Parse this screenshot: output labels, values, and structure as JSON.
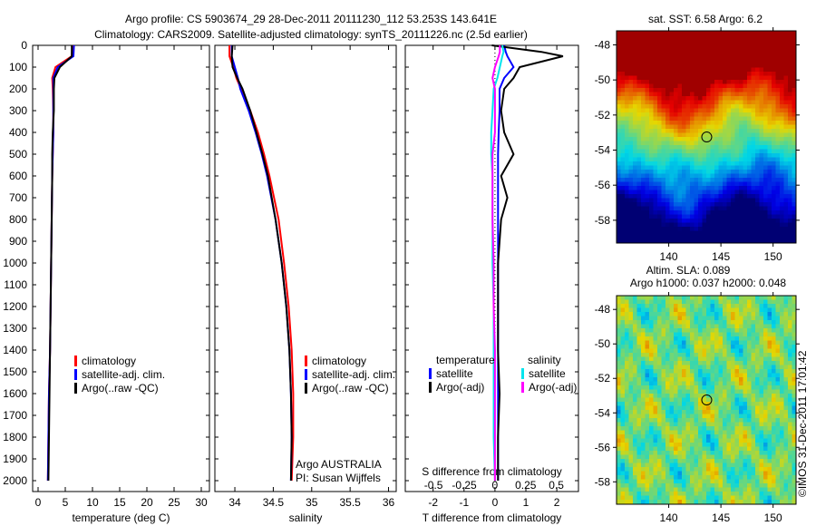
{
  "title_line1": "Argo profile: CS 5903674_29 28-Dec-2011 20111230_112 53.253S 143.641E",
  "title_line2": "Climatology: CARS2009. Satellite-adjusted climatology: synTS_20111226.nc (2.5d earlier)",
  "credit": "©IMOS 31-Dec-2011 17:01:42",
  "colors": {
    "climatology": "#ff0000",
    "satellite": "#0000ff",
    "argo": "#000000",
    "sal_satellite": "#00e5ee",
    "sal_argo": "#ff00ff"
  },
  "chart_data": [
    {
      "type": "line",
      "name": "temperature",
      "xlabel": "temperature (deg C)",
      "ylabel": "depth",
      "xlim": [
        -1,
        31.5
      ],
      "ylim": [
        2050,
        0
      ],
      "xticks": [
        0,
        5,
        10,
        15,
        20,
        25,
        30
      ],
      "yticks": [
        0,
        100,
        200,
        300,
        400,
        500,
        600,
        700,
        800,
        900,
        1000,
        1100,
        1200,
        1300,
        1400,
        1500,
        1600,
        1700,
        1800,
        1900,
        2000
      ],
      "depth": [
        0,
        50,
        100,
        150,
        200,
        300,
        400,
        500,
        600,
        800,
        1000,
        1200,
        1400,
        1600,
        1800,
        2000
      ],
      "series": [
        {
          "name": "climatology",
          "color": "#ff0000",
          "values": [
            6.3,
            6.2,
            3.2,
            2.6,
            2.7,
            2.8,
            2.8,
            2.7,
            2.6,
            2.5,
            2.4,
            2.3,
            2.2,
            2.0,
            1.9,
            1.8
          ]
        },
        {
          "name": "satellite-adj. clim.",
          "color": "#0000ff",
          "values": [
            6.6,
            6.5,
            3.6,
            2.8,
            2.8,
            2.8,
            2.8,
            2.7,
            2.6,
            2.5,
            2.4,
            2.3,
            2.2,
            2.0,
            1.9,
            1.8
          ]
        },
        {
          "name": "Argo(..raw -QC)",
          "color": "#000000",
          "values": [
            6.2,
            6.2,
            4.0,
            3.0,
            2.9,
            2.9,
            2.7,
            2.6,
            2.6,
            2.5,
            2.4,
            2.3,
            2.2,
            2.1,
            2.0,
            1.9
          ]
        }
      ]
    },
    {
      "type": "line",
      "name": "salinity",
      "xlabel": "salinity",
      "xlim": [
        33.74,
        36.1
      ],
      "ylim": [
        2050,
        0
      ],
      "xticks": [
        34,
        34.5,
        35,
        35.5,
        36
      ],
      "depth": [
        0,
        50,
        100,
        150,
        200,
        300,
        400,
        500,
        600,
        800,
        1000,
        1200,
        1400,
        1600,
        1800,
        2000
      ],
      "series": [
        {
          "name": "climatology",
          "color": "#ff0000",
          "values": [
            33.93,
            33.93,
            33.98,
            34.02,
            34.08,
            34.2,
            34.3,
            34.38,
            34.45,
            34.57,
            34.64,
            34.7,
            34.74,
            34.76,
            34.76,
            34.74
          ]
        },
        {
          "name": "satellite-adj. clim.",
          "color": "#0000ff",
          "values": [
            33.96,
            33.96,
            34.0,
            34.04,
            34.07,
            34.18,
            34.27,
            34.35,
            34.42,
            34.53,
            34.61,
            34.67,
            34.71,
            34.73,
            34.74,
            34.73
          ]
        },
        {
          "name": "Argo(..raw -QC)",
          "color": "#000000",
          "values": [
            33.97,
            33.96,
            33.97,
            34.03,
            34.1,
            34.2,
            34.28,
            34.36,
            34.43,
            34.53,
            34.61,
            34.67,
            34.71,
            34.73,
            34.74,
            34.73
          ]
        }
      ],
      "annotation": [
        "Argo AUSTRALIA",
        "PI: Susan Wijffels"
      ]
    },
    {
      "type": "line",
      "name": "difference",
      "xlabel": "T difference from climatology",
      "x2label": "S difference from climatology",
      "xlim": [
        -2.9,
        2.7
      ],
      "x2lim": [
        -0.73,
        0.68
      ],
      "ylim": [
        2050,
        0
      ],
      "xticks": [
        -2,
        -1,
        0,
        1,
        2
      ],
      "x2ticks": [
        -0.5,
        -0.25,
        0,
        0.25,
        0.5
      ],
      "x2ticklabels": [
        "-0.5",
        "-0.25",
        "0",
        "0.25",
        "0.5"
      ],
      "depth": [
        0,
        30,
        50,
        100,
        150,
        200,
        300,
        400,
        500,
        600,
        700,
        800,
        1000,
        1200,
        1400,
        1600,
        1800,
        2000
      ],
      "series": [
        {
          "name": "temperature satellite",
          "axis": "T",
          "color": "#0000ff",
          "values": [
            0.3,
            0.35,
            0.4,
            0.6,
            0.3,
            0.15,
            0.15,
            0.12,
            0.1,
            0.1,
            0.1,
            0.1,
            0.1,
            0.1,
            0.1,
            0.1,
            0.1,
            0.1
          ]
        },
        {
          "name": "temperature Argo(-adj)",
          "axis": "T",
          "color": "#000000",
          "values": [
            -0.1,
            1.5,
            2.2,
            0.8,
            0.6,
            0.3,
            0.2,
            0.3,
            0.6,
            0.2,
            0.4,
            0.2,
            0.1,
            0.1,
            0.1,
            0.15,
            0.1,
            0.1
          ]
        },
        {
          "name": "salinity satellite",
          "axis": "S",
          "color": "#00e5ee",
          "values": [
            0.06,
            0.07,
            0.06,
            0.04,
            0.02,
            -0.01,
            -0.02,
            -0.03,
            -0.03,
            -0.02,
            -0.02,
            -0.02,
            -0.02,
            -0.01,
            -0.01,
            -0.01,
            -0.01,
            0.0
          ]
        },
        {
          "name": "salinity Argo(-adj)",
          "axis": "S",
          "color": "#ff00ff",
          "values": [
            0.04,
            0.04,
            0.03,
            0.0,
            -0.02,
            0.0,
            0.0,
            0.0,
            -0.02,
            -0.02,
            -0.02,
            -0.02,
            -0.01,
            -0.01,
            0.0,
            0.0,
            0.0,
            0.0
          ]
        }
      ],
      "legend": {
        "temp_header": "temperature",
        "sal_header": "salinity",
        "satellite": "satellite",
        "argo": "Argo(-adj)"
      }
    },
    {
      "type": "heatmap",
      "name": "sst-map",
      "title": "sat. SST: 6.58 Argo: 6.2",
      "xlim": [
        135,
        152.2
      ],
      "ylim": [
        -59.3,
        -47.2
      ],
      "xticks": [
        140,
        145,
        150
      ],
      "yticks": [
        -48,
        -50,
        -52,
        -54,
        -56,
        -58
      ],
      "marker": {
        "lon": 143.641,
        "lat": -53.253
      }
    },
    {
      "type": "heatmap",
      "name": "sla-map",
      "title_line1": "Altim. SLA: 0.089",
      "title_line2": "Argo h1000: 0.037 h2000: 0.048",
      "xlim": [
        135,
        152.2
      ],
      "ylim": [
        -59.3,
        -47.2
      ],
      "xticks": [
        140,
        145,
        150
      ],
      "yticks": [
        -48,
        -50,
        -52,
        -54,
        -56,
        -58
      ],
      "marker": {
        "lon": 143.641,
        "lat": -53.253
      }
    }
  ]
}
